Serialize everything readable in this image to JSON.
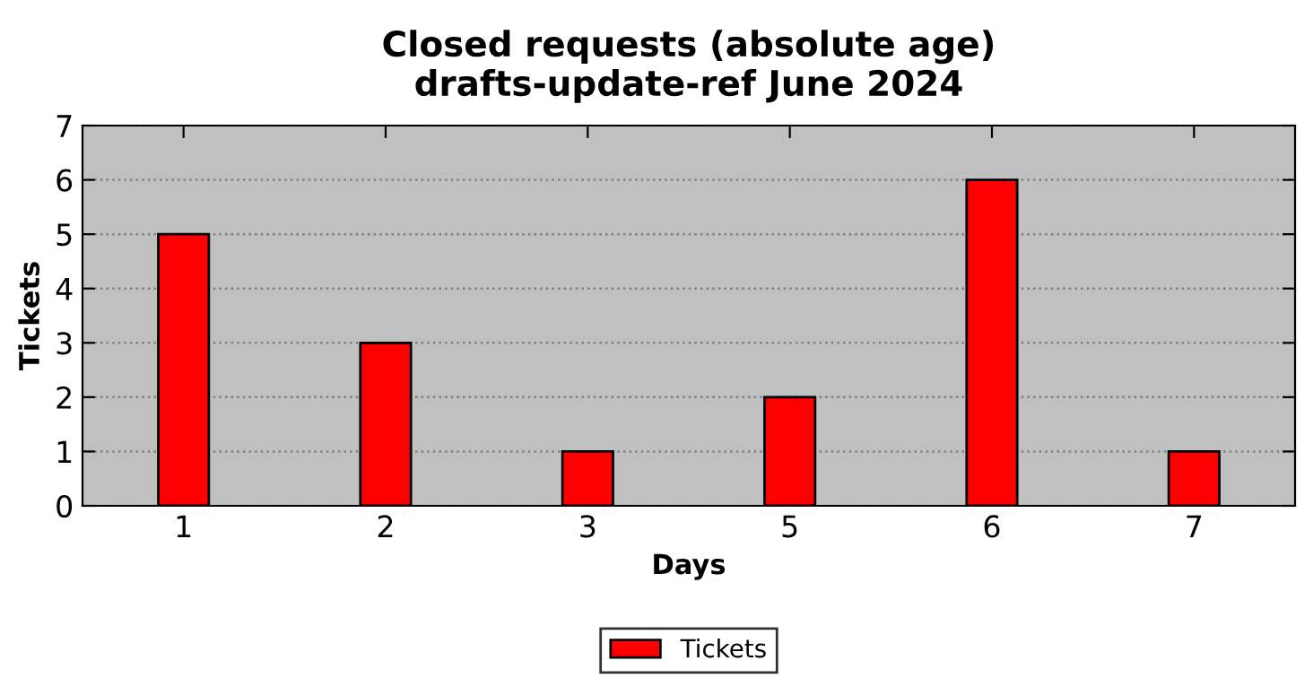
{
  "chart_data": {
    "type": "bar",
    "title": "Closed requests (absolute age)\ndrafts-update-ref June 2024",
    "xlabel": "Days",
    "ylabel": "Tickets",
    "categories": [
      "1",
      "2",
      "3",
      "5",
      "6",
      "7"
    ],
    "series": [
      {
        "name": "Tickets",
        "color": "#ff0000",
        "values": [
          5,
          3,
          1,
          2,
          6,
          1
        ]
      }
    ],
    "ylim": [
      0,
      7
    ],
    "yticks": [
      0,
      1,
      2,
      3,
      4,
      5,
      6,
      7
    ],
    "grid": "y",
    "legend": "bottom"
  }
}
